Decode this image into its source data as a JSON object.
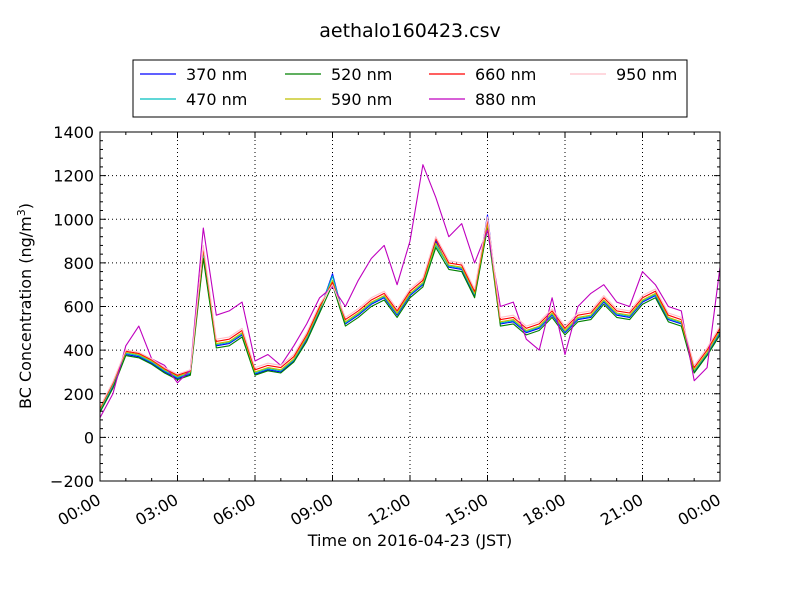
{
  "chart_data": {
    "type": "line",
    "title": "aethalo160423.csv",
    "xlabel": "Time on 2016-04-23 (JST)",
    "ylabel": "BC Concentration (ng/m",
    "ylabel_sup": "3",
    "ylabel_end": ")",
    "xlim": [
      "00:00",
      "24:00"
    ],
    "ylim": [
      -200,
      1400
    ],
    "grid": true,
    "legend_position": "top-center",
    "x_tick_labels": [
      "00:00",
      "03:00",
      "06:00",
      "09:00",
      "12:00",
      "15:00",
      "18:00",
      "21:00",
      "00:00"
    ],
    "y_tick_labels": [
      "−200",
      "0",
      "200",
      "400",
      "600",
      "800",
      "1000",
      "1200",
      "1400"
    ],
    "x_hours": [
      0.0,
      0.5,
      1.0,
      1.5,
      2.0,
      2.5,
      3.0,
      3.5,
      4.0,
      4.5,
      5.0,
      5.5,
      6.0,
      6.5,
      7.0,
      7.5,
      8.0,
      8.5,
      9.0,
      9.5,
      10.0,
      10.5,
      11.0,
      11.5,
      12.0,
      12.5,
      13.0,
      13.5,
      14.0,
      14.5,
      15.0,
      15.5,
      16.0,
      16.5,
      17.0,
      17.5,
      18.0,
      18.5,
      19.0,
      19.5,
      20.0,
      20.5,
      21.0,
      21.5,
      22.0,
      22.5,
      23.0,
      23.5,
      24.0
    ],
    "series": [
      {
        "name": "370 nm",
        "color": "#0000ff",
        "values": [
          120,
          230,
          380,
          370,
          340,
          300,
          270,
          290,
          850,
          420,
          430,
          470,
          290,
          310,
          300,
          350,
          450,
          580,
          750,
          520,
          560,
          610,
          640,
          560,
          650,
          700,
          900,
          780,
          770,
          650,
          1020,
          520,
          530,
          480,
          500,
          560,
          480,
          540,
          550,
          620,
          560,
          550,
          620,
          650,
          540,
          520,
          300,
          380,
          480
        ]
      },
      {
        "name": "470 nm",
        "color": "#00bfbf",
        "values": [
          125,
          240,
          385,
          375,
          345,
          305,
          275,
          295,
          830,
          425,
          435,
          475,
          295,
          315,
          305,
          355,
          455,
          585,
          740,
          525,
          565,
          615,
          645,
          565,
          655,
          705,
          880,
          785,
          775,
          655,
          990,
          525,
          535,
          485,
          505,
          565,
          485,
          545,
          555,
          625,
          565,
          555,
          625,
          655,
          545,
          525,
          305,
          385,
          485
        ]
      },
      {
        "name": "520 nm",
        "color": "#008000",
        "values": [
          115,
          225,
          375,
          365,
          335,
          295,
          265,
          285,
          820,
          410,
          420,
          460,
          285,
          305,
          295,
          345,
          440,
          570,
          700,
          510,
          550,
          600,
          630,
          550,
          640,
          690,
          870,
          770,
          760,
          640,
          960,
          510,
          520,
          470,
          490,
          550,
          470,
          530,
          540,
          610,
          550,
          540,
          610,
          640,
          530,
          510,
          295,
          375,
          470
        ]
      },
      {
        "name": "590 nm",
        "color": "#bfbf00",
        "values": [
          130,
          245,
          390,
          380,
          350,
          310,
          280,
          300,
          860,
          430,
          440,
          480,
          300,
          320,
          310,
          360,
          460,
          590,
          720,
          530,
          570,
          620,
          650,
          570,
          660,
          710,
          890,
          790,
          780,
          660,
          980,
          530,
          540,
          490,
          510,
          570,
          490,
          550,
          560,
          630,
          570,
          560,
          630,
          660,
          550,
          530,
          310,
          390,
          490
        ]
      },
      {
        "name": "660 nm",
        "color": "#ff0000",
        "values": [
          135,
          250,
          395,
          385,
          355,
          315,
          285,
          305,
          870,
          440,
          450,
          490,
          310,
          330,
          320,
          370,
          470,
          600,
          710,
          540,
          580,
          630,
          660,
          580,
          670,
          720,
          910,
          800,
          790,
          670,
          1000,
          540,
          550,
          500,
          520,
          580,
          500,
          560,
          570,
          640,
          580,
          570,
          640,
          670,
          560,
          540,
          320,
          400,
          500
        ]
      },
      {
        "name": "880 nm",
        "color": "#bf00bf",
        "values": [
          90,
          200,
          420,
          510,
          360,
          330,
          250,
          310,
          960,
          560,
          580,
          620,
          350,
          380,
          330,
          420,
          520,
          640,
          690,
          600,
          720,
          820,
          880,
          700,
          900,
          1250,
          1100,
          920,
          980,
          800,
          950,
          600,
          620,
          450,
          400,
          640,
          380,
          600,
          660,
          700,
          620,
          600,
          760,
          700,
          600,
          580,
          260,
          320,
          780
        ]
      },
      {
        "name": "950 nm",
        "color": "#ffc0cb",
        "values": [
          140,
          255,
          400,
          390,
          360,
          320,
          290,
          310,
          880,
          450,
          460,
          500,
          320,
          340,
          330,
          380,
          480,
          610,
          700,
          550,
          590,
          640,
          670,
          590,
          680,
          730,
          920,
          810,
          800,
          680,
          1010,
          550,
          560,
          510,
          530,
          590,
          510,
          570,
          580,
          650,
          590,
          580,
          650,
          680,
          570,
          550,
          330,
          410,
          510
        ]
      }
    ]
  }
}
